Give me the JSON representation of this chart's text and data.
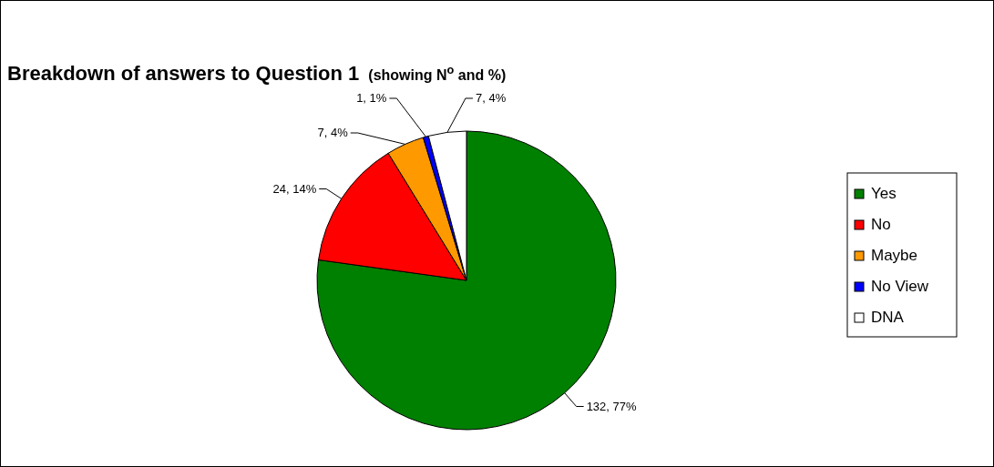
{
  "chart_data": {
    "type": "pie",
    "title": "Breakdown of answers to Question 1",
    "subtitle": "(showing N$^{o}$ and %)",
    "categories": [
      "Yes",
      "No",
      "Maybe",
      "No View",
      "DNA"
    ],
    "values": [
      132,
      24,
      7,
      1,
      7
    ],
    "colors": [
      "#008000",
      "#ff0000",
      "#ff9900",
      "#0000ff",
      "#ffffff"
    ],
    "value_labels": [
      "132, 77%",
      "24, 14%",
      "7, 4%",
      "1, 1%",
      "7, 4%"
    ],
    "legend": "right"
  }
}
